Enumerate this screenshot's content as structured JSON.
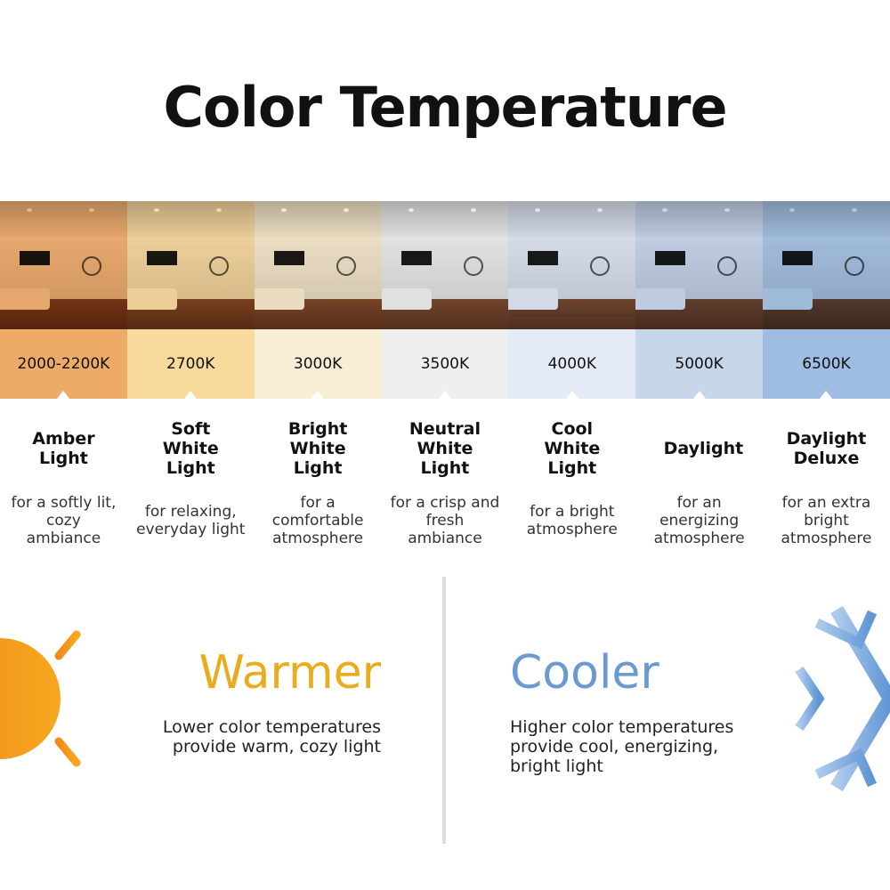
{
  "title": "Color Temperature",
  "columns": [
    {
      "kelvin": "2000-2200K",
      "name": "Amber Light",
      "description": "for a softly lit, cozy ambiance",
      "band_color": "#eeab68",
      "tint": "#f2b072"
    },
    {
      "kelvin": "2700K",
      "name": "Soft White Light",
      "description": "for relaxing, everyday light",
      "band_color": "#f8da9c",
      "tint": "#f8d9a0"
    },
    {
      "kelvin": "3000K",
      "name": "Bright White Light",
      "description": "for a comfortable atmosphere",
      "band_color": "#f8eed5",
      "tint": "#f6e8cc"
    },
    {
      "kelvin": "3500K",
      "name": "Neutral White Light",
      "description": "for a crisp and fresh ambiance",
      "band_color": "#efefef",
      "tint": "#ececec"
    },
    {
      "kelvin": "4000K",
      "name": "Cool White Light",
      "description": "for a bright atmosphere",
      "band_color": "#e5ebf6",
      "tint": "#dfe6f3"
    },
    {
      "kelvin": "5000K",
      "name": "Daylight",
      "description": "for an energizing atmosphere",
      "band_color": "#c8d6ea",
      "tint": "#c8d6ec"
    },
    {
      "kelvin": "6500K",
      "name": "Daylight Deluxe",
      "description": "for an extra bright atmosphere",
      "band_color": "#9fbde2",
      "tint": "#a9c4e6"
    }
  ],
  "warmer": {
    "heading": "Warmer",
    "text": "Lower color temperatures provide warm, cozy light",
    "color": "#e9ac1d",
    "icon": "sun-icon"
  },
  "cooler": {
    "heading": "Cooler",
    "text": "Higher color temperatures provide cool, energizing, bright light",
    "color": "#6b9ad2",
    "icon": "snowflake-icon"
  }
}
